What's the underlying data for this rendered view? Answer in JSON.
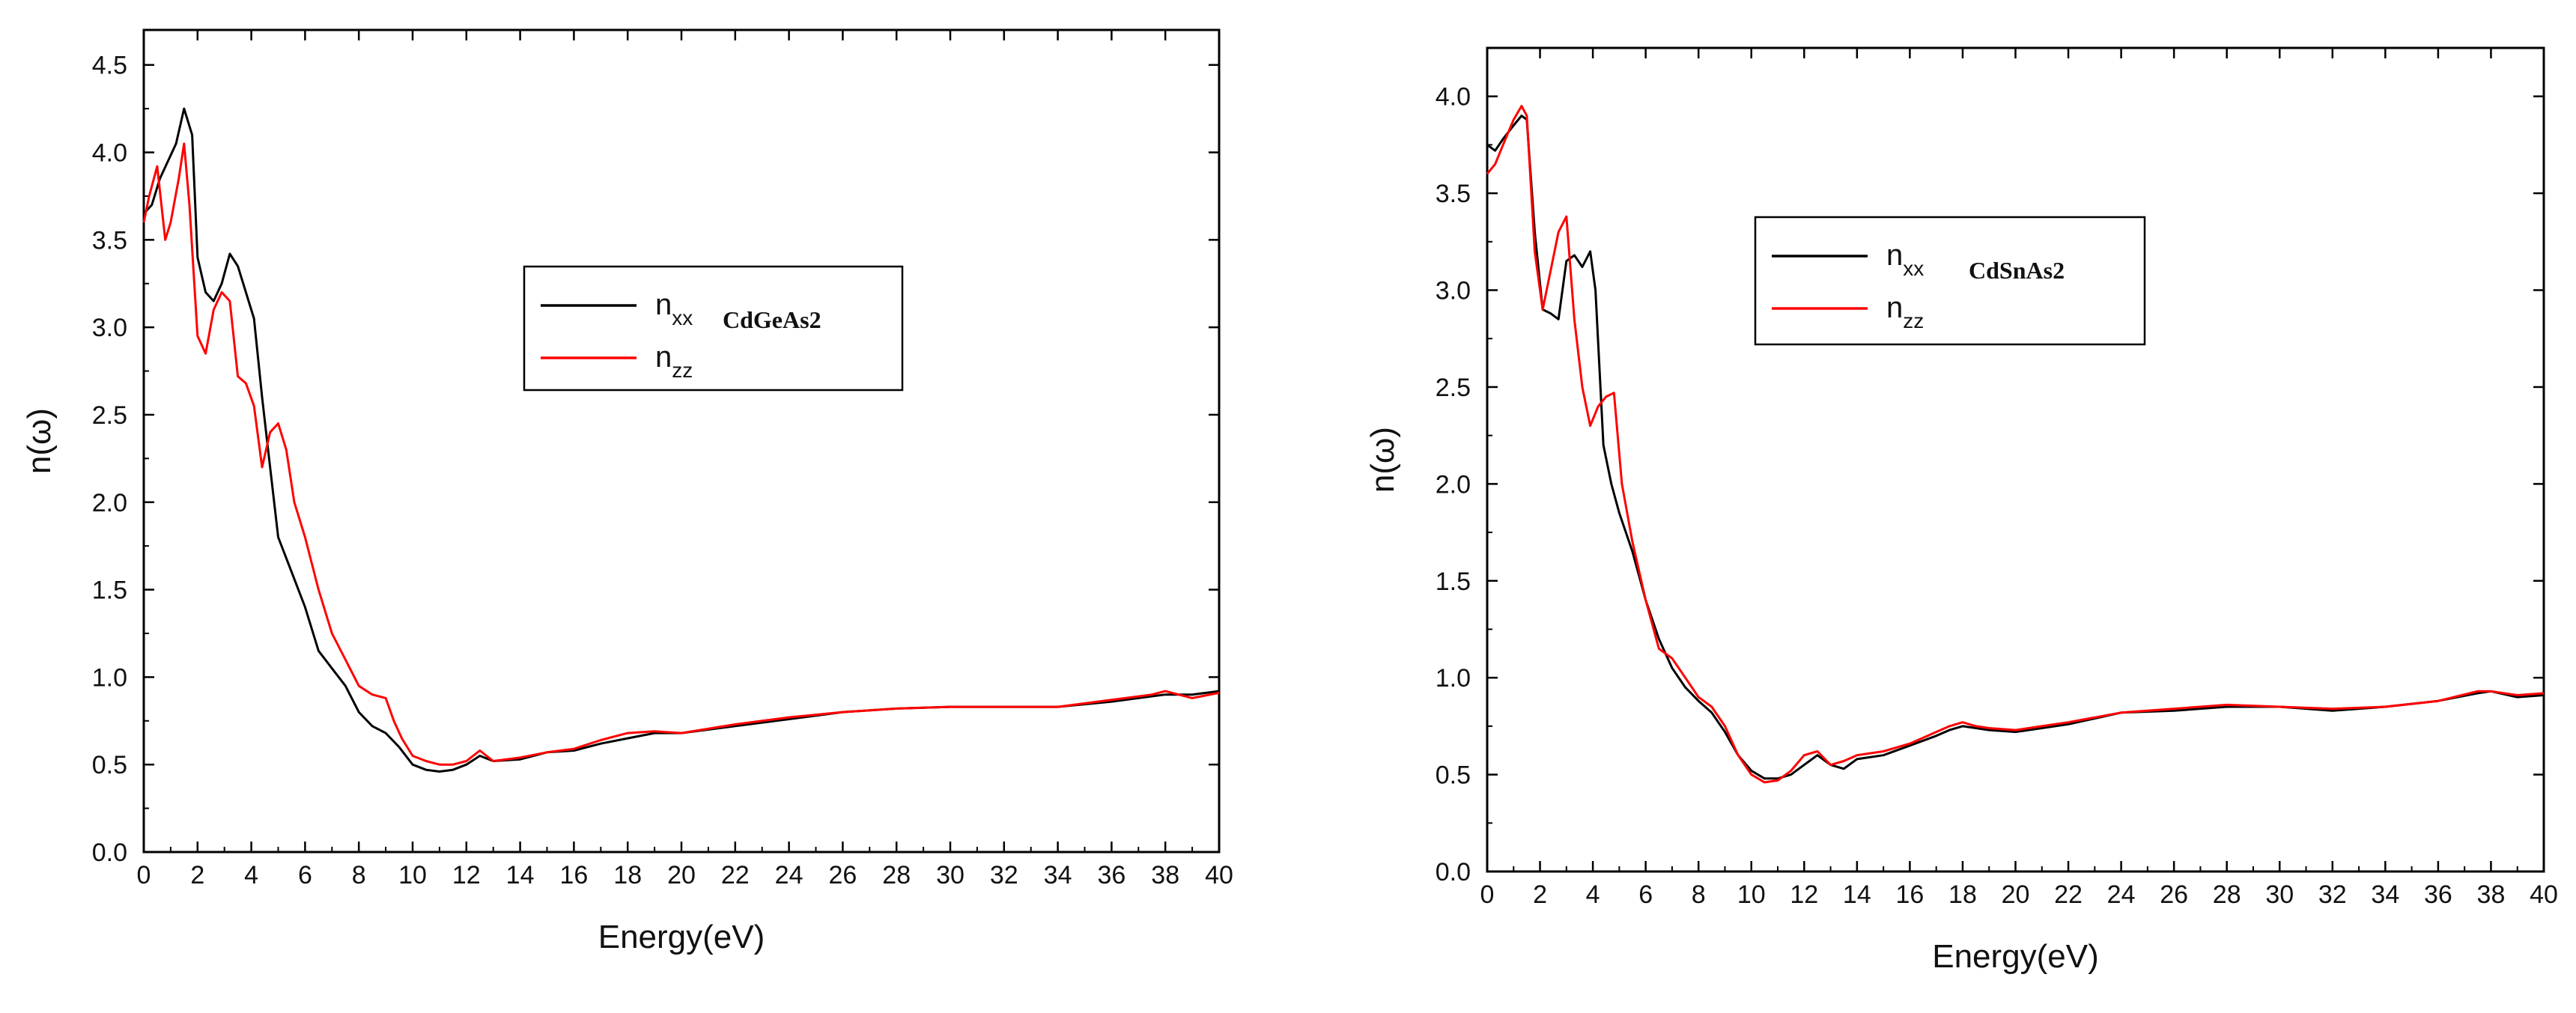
{
  "chart_data": [
    {
      "type": "line",
      "xlabel": "Energy(eV)",
      "ylabel": "n(ω)",
      "xlim": [
        0,
        40
      ],
      "ylim": [
        0,
        4.7
      ],
      "xticks": [
        0,
        2,
        4,
        6,
        8,
        10,
        12,
        14,
        16,
        18,
        20,
        22,
        24,
        26,
        28,
        30,
        32,
        34,
        36,
        38,
        40
      ],
      "yticks": [
        0.0,
        0.5,
        1.0,
        1.5,
        2.0,
        2.5,
        3.0,
        3.5,
        4.0,
        4.5
      ],
      "grid": false,
      "legend": {
        "placement": "upper-right-center",
        "material": "CdGeAs2",
        "entries": [
          {
            "main": "n",
            "sub": "xx",
            "color": "#000000"
          },
          {
            "main": "n",
            "sub": "zz",
            "color": "#ff0000"
          }
        ]
      },
      "series": [
        {
          "color": "#000000",
          "x": [
            0,
            0.3,
            0.6,
            0.9,
            1.2,
            1.5,
            1.8,
            2.0,
            2.3,
            2.6,
            2.9,
            3.2,
            3.5,
            3.8,
            4.1,
            4.4,
            4.7,
            5.0,
            5.5,
            6.0,
            6.5,
            7.0,
            7.5,
            8.0,
            8.5,
            9.0,
            9.5,
            10.0,
            10.5,
            11.0,
            11.5,
            12.0,
            12.5,
            13.0,
            14,
            15,
            16,
            17,
            18,
            19,
            20,
            22,
            24,
            26,
            28,
            30,
            32,
            34,
            36,
            38,
            39,
            40
          ],
          "y": [
            3.65,
            3.7,
            3.85,
            3.95,
            4.05,
            4.25,
            4.1,
            3.4,
            3.2,
            3.15,
            3.25,
            3.42,
            3.35,
            3.2,
            3.05,
            2.6,
            2.2,
            1.8,
            1.6,
            1.4,
            1.15,
            1.05,
            0.95,
            0.8,
            0.72,
            0.68,
            0.6,
            0.5,
            0.47,
            0.46,
            0.47,
            0.5,
            0.55,
            0.52,
            0.53,
            0.57,
            0.58,
            0.62,
            0.65,
            0.68,
            0.68,
            0.72,
            0.76,
            0.8,
            0.82,
            0.83,
            0.83,
            0.83,
            0.86,
            0.9,
            0.9,
            0.92
          ]
        },
        {
          "color": "#ff0000",
          "x": [
            0,
            0.2,
            0.5,
            0.8,
            1.0,
            1.3,
            1.5,
            1.7,
            2.0,
            2.3,
            2.6,
            2.9,
            3.2,
            3.5,
            3.8,
            4.1,
            4.4,
            4.7,
            5.0,
            5.3,
            5.6,
            6.0,
            6.5,
            7.0,
            7.5,
            8.0,
            8.5,
            9.0,
            9.3,
            9.6,
            10.0,
            10.5,
            11.0,
            11.5,
            12.0,
            12.5,
            13.0,
            14,
            15,
            16,
            17,
            18,
            19,
            20,
            22,
            24,
            26,
            28,
            30,
            32,
            34,
            36,
            37.5,
            38,
            39,
            40
          ],
          "y": [
            3.6,
            3.75,
            3.92,
            3.5,
            3.6,
            3.85,
            4.05,
            3.7,
            2.95,
            2.85,
            3.1,
            3.2,
            3.15,
            2.72,
            2.68,
            2.55,
            2.2,
            2.4,
            2.45,
            2.3,
            2.0,
            1.8,
            1.5,
            1.25,
            1.1,
            0.95,
            0.9,
            0.88,
            0.75,
            0.65,
            0.55,
            0.52,
            0.5,
            0.5,
            0.52,
            0.58,
            0.52,
            0.54,
            0.57,
            0.59,
            0.64,
            0.68,
            0.69,
            0.68,
            0.73,
            0.77,
            0.8,
            0.82,
            0.83,
            0.83,
            0.83,
            0.87,
            0.9,
            0.92,
            0.88,
            0.91
          ]
        }
      ]
    },
    {
      "type": "line",
      "xlabel": "Energy(eV)",
      "ylabel": "n(ω)",
      "xlim": [
        0,
        40
      ],
      "ylim": [
        0,
        4.25
      ],
      "xticks": [
        0,
        2,
        4,
        6,
        8,
        10,
        12,
        14,
        16,
        18,
        20,
        22,
        24,
        26,
        28,
        30,
        32,
        34,
        36,
        38,
        40
      ],
      "yticks": [
        0.0,
        0.5,
        1.0,
        1.5,
        2.0,
        2.5,
        3.0,
        3.5,
        4.0
      ],
      "grid": false,
      "legend": {
        "placement": "upper-center",
        "material": "CdSnAs2",
        "entries": [
          {
            "main": "n",
            "sub": "xx",
            "color": "#000000"
          },
          {
            "main": "n",
            "sub": "zz",
            "color": "#ff0000"
          }
        ]
      },
      "series": [
        {
          "color": "#000000",
          "x": [
            0,
            0.3,
            0.6,
            1.0,
            1.3,
            1.5,
            1.8,
            2.1,
            2.4,
            2.7,
            3.0,
            3.3,
            3.6,
            3.9,
            4.1,
            4.4,
            4.7,
            5.0,
            5.5,
            6.0,
            6.5,
            7.0,
            7.5,
            8.0,
            8.5,
            9.0,
            9.5,
            10.0,
            10.5,
            11.0,
            11.5,
            12.0,
            12.5,
            13.0,
            13.5,
            14,
            15,
            16,
            17,
            17.5,
            18,
            18.5,
            19,
            20,
            21,
            22,
            24,
            26,
            28,
            30,
            32,
            34,
            36,
            37.5,
            38,
            39,
            40
          ],
          "y": [
            3.75,
            3.72,
            3.78,
            3.85,
            3.9,
            3.88,
            3.3,
            2.9,
            2.88,
            2.85,
            3.15,
            3.18,
            3.12,
            3.2,
            3.0,
            2.2,
            2.0,
            1.85,
            1.65,
            1.4,
            1.2,
            1.05,
            0.95,
            0.88,
            0.82,
            0.72,
            0.6,
            0.52,
            0.48,
            0.48,
            0.5,
            0.55,
            0.6,
            0.55,
            0.53,
            0.58,
            0.6,
            0.65,
            0.7,
            0.73,
            0.75,
            0.74,
            0.73,
            0.72,
            0.74,
            0.76,
            0.82,
            0.83,
            0.85,
            0.85,
            0.83,
            0.85,
            0.88,
            0.92,
            0.93,
            0.9,
            0.91
          ]
        },
        {
          "color": "#ff0000",
          "x": [
            0,
            0.3,
            0.6,
            1.0,
            1.3,
            1.5,
            1.8,
            2.1,
            2.4,
            2.7,
            3.0,
            3.3,
            3.6,
            3.9,
            4.2,
            4.5,
            4.8,
            5.1,
            5.5,
            6.0,
            6.5,
            7.0,
            7.5,
            8.0,
            8.5,
            9.0,
            9.5,
            10.0,
            10.5,
            11.0,
            11.5,
            12.0,
            12.5,
            13.0,
            13.5,
            14,
            15,
            16,
            17,
            17.5,
            18,
            18.5,
            19,
            20,
            21,
            22,
            24,
            26,
            28,
            30,
            32,
            34,
            36,
            37.5,
            38,
            39,
            40
          ],
          "y": [
            3.6,
            3.65,
            3.75,
            3.88,
            3.95,
            3.9,
            3.2,
            2.9,
            3.1,
            3.3,
            3.38,
            2.85,
            2.5,
            2.3,
            2.4,
            2.45,
            2.47,
            2.0,
            1.7,
            1.4,
            1.15,
            1.1,
            1.0,
            0.9,
            0.85,
            0.75,
            0.6,
            0.5,
            0.46,
            0.47,
            0.52,
            0.6,
            0.62,
            0.55,
            0.57,
            0.6,
            0.62,
            0.66,
            0.72,
            0.75,
            0.77,
            0.75,
            0.74,
            0.73,
            0.75,
            0.77,
            0.82,
            0.84,
            0.86,
            0.85,
            0.84,
            0.85,
            0.88,
            0.93,
            0.93,
            0.91,
            0.92
          ]
        }
      ]
    }
  ]
}
